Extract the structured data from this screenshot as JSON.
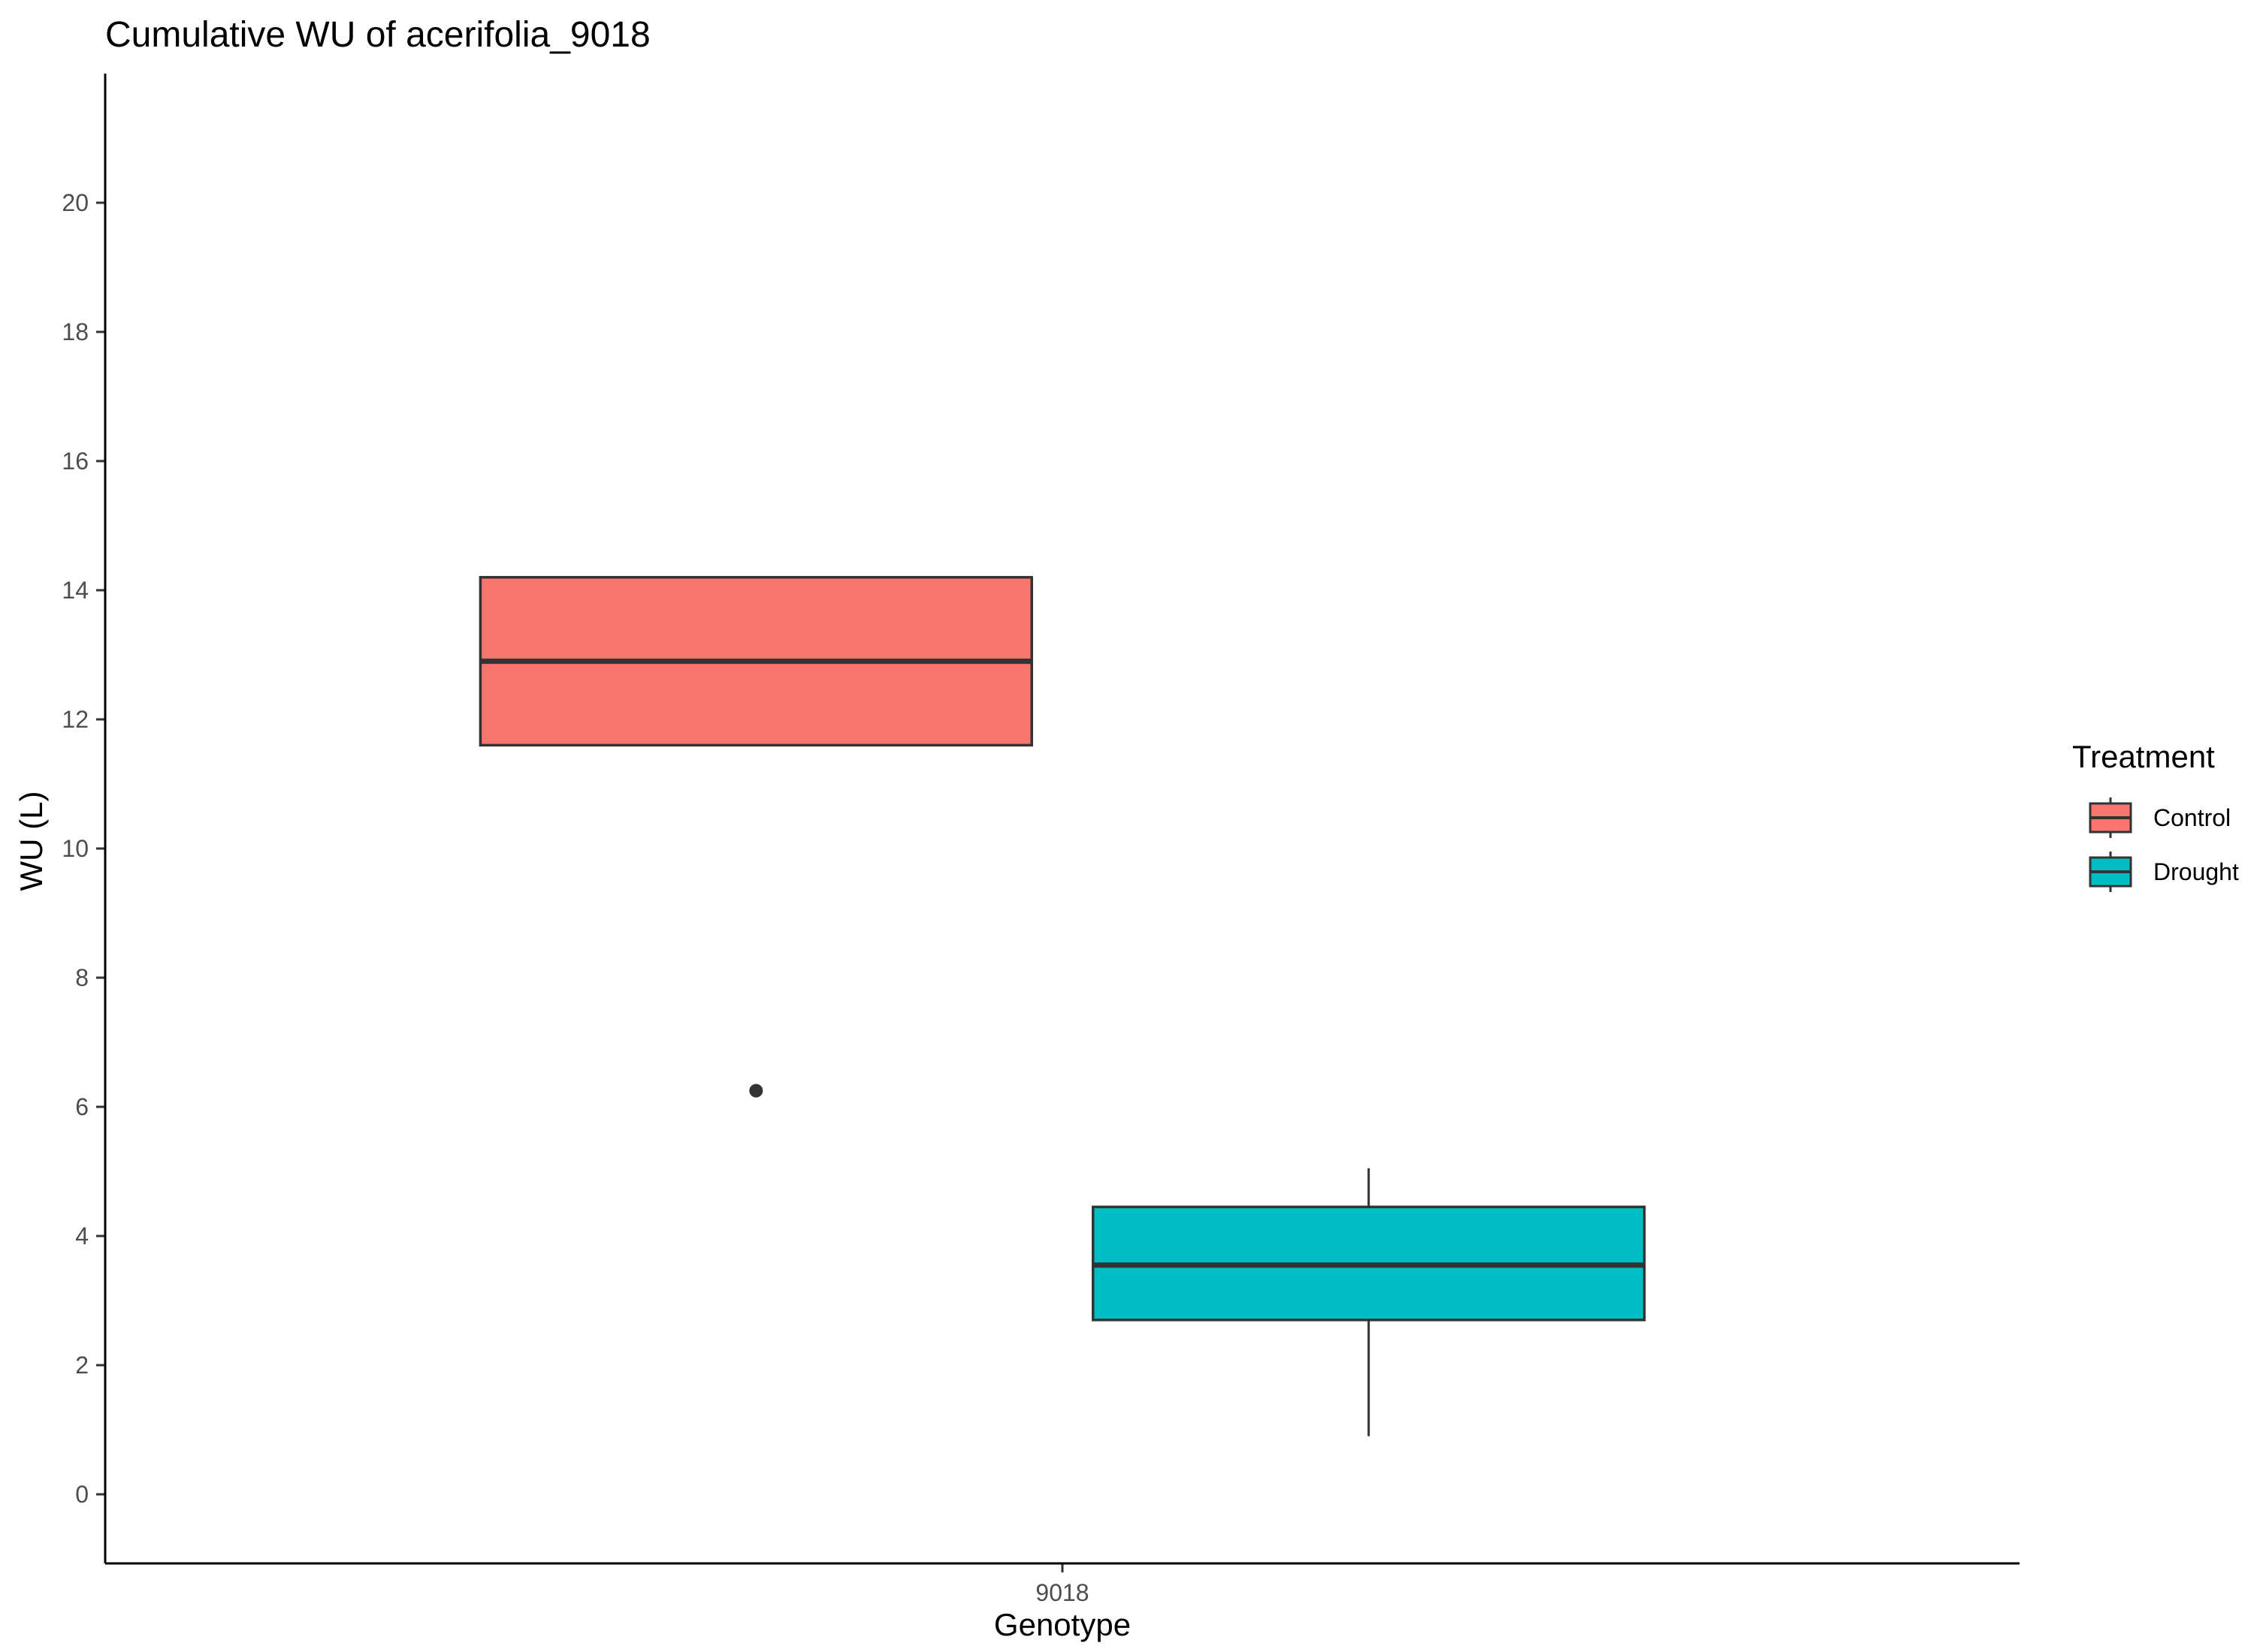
{
  "chart_data": {
    "type": "boxplot",
    "title": "Cumulative WU of acerifolia_9018",
    "xlabel": "Genotype",
    "ylabel": "WU (L)",
    "categories": [
      "9018"
    ],
    "ylim": [
      -1,
      22
    ],
    "yticks": [
      0,
      2,
      4,
      6,
      8,
      10,
      12,
      14,
      16,
      18,
      20
    ],
    "grid": false,
    "legend": {
      "title": "Treatment",
      "placement": "right",
      "entries": [
        "Control",
        "Drought"
      ]
    },
    "series": [
      {
        "name": "Control",
        "color": "#F8766D",
        "category": "9018",
        "q1": 11.6,
        "median": 12.9,
        "q3": 14.2,
        "whisker_low": 11.6,
        "whisker_high": 14.2,
        "outliers": [
          6.25
        ]
      },
      {
        "name": "Drought",
        "color": "#00BFC4",
        "category": "9018",
        "q1": 2.7,
        "median": 3.55,
        "q3": 4.45,
        "whisker_low": 0.9,
        "whisker_high": 5.05,
        "outliers": []
      }
    ]
  }
}
